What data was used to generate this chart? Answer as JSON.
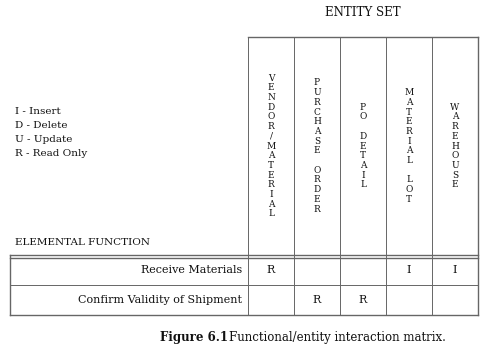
{
  "title_entity": "ENTITY SET",
  "col_headers": [
    "V\nE\nN\nD\nO\nR\n/\nM\nA\nT\nE\nR\nI\nA\nL",
    "P\nU\nR\nC\nH\nA\nS\nE\n \nO\nR\nD\nE\nR",
    "P\nO\n \nD\nE\nT\nA\nI\nL",
    "M\nA\nT\nE\nR\nI\nA\nL\n \nL\nO\nT",
    "W\nA\nR\nE\nH\nO\nU\nS\nE"
  ],
  "legend_lines": [
    "I - Insert",
    "D - Delete",
    "U - Update",
    "R - Read Only"
  ],
  "elemental_label": "ELEMENTAL FUNCTION",
  "rows": [
    {
      "name": "Confirm Validity of Shipment",
      "values": [
        "",
        "R",
        "R",
        "",
        ""
      ]
    },
    {
      "name": "Receive Materials",
      "values": [
        "R",
        "",
        "",
        "I",
        "I"
      ]
    }
  ],
  "caption_bold": "Figure 6.1",
  "caption_rest": "    Functional/entity interaction matrix.",
  "bg_color": "#ffffff",
  "text_color": "#111111",
  "grid_color": "#666666",
  "font_size_title": 8.5,
  "font_size_header": 6.5,
  "font_size_cell": 8,
  "font_size_legend": 7.5,
  "font_size_ef": 7.5,
  "font_size_caption": 8.5
}
